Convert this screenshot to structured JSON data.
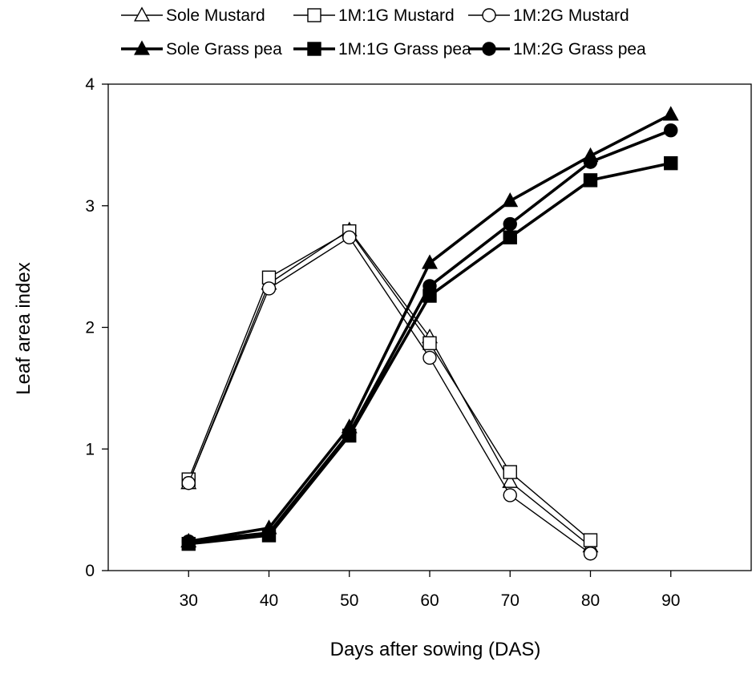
{
  "chart_data": {
    "type": "line",
    "xlabel": "Days after sowing (DAS)",
    "ylabel": "Leaf area index",
    "xlim": [
      20,
      100
    ],
    "ylim": [
      0,
      4
    ],
    "x_ticks": [
      30,
      40,
      50,
      60,
      70,
      80,
      90
    ],
    "y_ticks": [
      0,
      1,
      2,
      3,
      4
    ],
    "grid": false,
    "legend_position": "top",
    "series": [
      {
        "name": "Sole Mustard",
        "marker": "triangle",
        "fill": "open",
        "weight": "thin",
        "x": [
          30,
          40,
          50,
          60,
          70,
          80
        ],
        "y": [
          0.72,
          2.36,
          2.8,
          1.92,
          0.73,
          0.2
        ]
      },
      {
        "name": "1M:1G Mustard",
        "marker": "square",
        "fill": "open",
        "weight": "thin",
        "x": [
          30,
          40,
          50,
          60,
          70,
          80
        ],
        "y": [
          0.75,
          2.41,
          2.79,
          1.87,
          0.81,
          0.25
        ]
      },
      {
        "name": "1M:2G Mustard",
        "marker": "circle",
        "fill": "open",
        "weight": "thin",
        "x": [
          30,
          40,
          50,
          60,
          70,
          80
        ],
        "y": [
          0.72,
          2.32,
          2.74,
          1.75,
          0.62,
          0.14
        ]
      },
      {
        "name": "Sole Grass pea",
        "marker": "triangle",
        "fill": "solid",
        "weight": "thick",
        "x": [
          30,
          40,
          50,
          60,
          70,
          80,
          90
        ],
        "y": [
          0.24,
          0.35,
          1.18,
          2.53,
          3.04,
          3.41,
          3.75
        ]
      },
      {
        "name": "1M:1G Grass pea",
        "marker": "square",
        "fill": "solid",
        "weight": "thick",
        "x": [
          30,
          40,
          50,
          60,
          70,
          80,
          90
        ],
        "y": [
          0.22,
          0.29,
          1.11,
          2.26,
          2.74,
          3.21,
          3.35
        ]
      },
      {
        "name": "1M:2G Grass pea",
        "marker": "circle",
        "fill": "solid",
        "weight": "thick",
        "x": [
          30,
          40,
          50,
          60,
          70,
          80,
          90
        ],
        "y": [
          0.24,
          0.31,
          1.13,
          2.34,
          2.85,
          3.36,
          3.62
        ]
      }
    ]
  }
}
